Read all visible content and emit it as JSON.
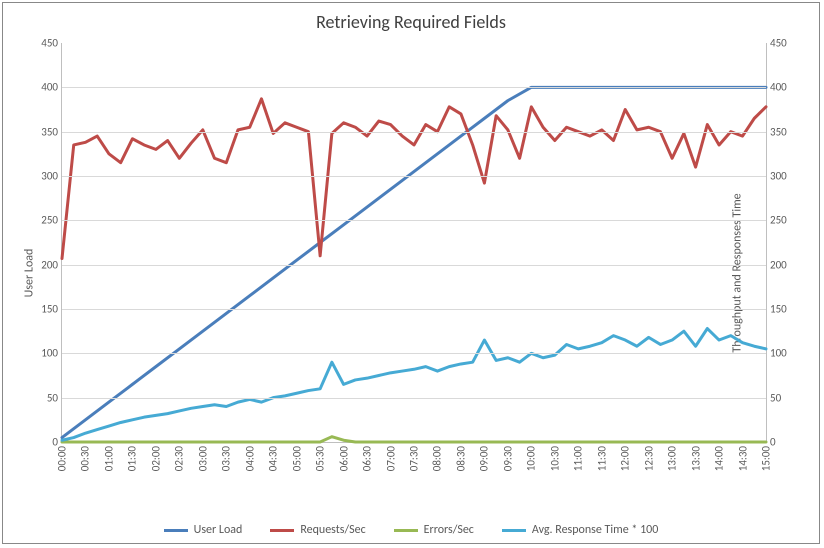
{
  "chart": {
    "title": "Retrieving Required Fields",
    "title_fontsize": 18,
    "font_family": "Calibri, Arial, sans-serif",
    "background_color": "#ffffff",
    "frame_border_color": "#888888",
    "grid_color": "#d9d9d9",
    "axis_color": "#bfbfbf",
    "tick_fontsize": 11,
    "label_fontsize": 12,
    "text_color": "#595959",
    "y_left": {
      "label": "User Load",
      "min": 0,
      "max": 450,
      "step": 50
    },
    "y_right": {
      "label": "Throughput and Responses Time",
      "min": 0,
      "max": 450,
      "step": 50
    },
    "x_labels": [
      "00:00",
      "00:30",
      "01:00",
      "01:30",
      "02:00",
      "02:30",
      "03:00",
      "03:30",
      "04:00",
      "04:30",
      "05:00",
      "05:30",
      "06:00",
      "06:30",
      "07:00",
      "07:30",
      "08:00",
      "08:30",
      "09:00",
      "09:30",
      "10:00",
      "10:30",
      "11:00",
      "11:30",
      "12:00",
      "12:30",
      "13:00",
      "13:30",
      "14:00",
      "14:30",
      "15:00"
    ],
    "series": [
      {
        "name": "User Load",
        "color": "#4a7ebb",
        "width": 3,
        "axis": "left",
        "data": [
          5,
          25,
          45,
          65,
          85,
          105,
          125,
          145,
          165,
          185,
          205,
          225,
          245,
          265,
          285,
          305,
          325,
          345,
          365,
          385,
          400,
          400,
          400,
          400,
          400,
          400,
          400,
          400,
          400,
          400,
          400
        ]
      },
      {
        "name": "Requests/Sec",
        "color": "#be4b48",
        "width": 3,
        "axis": "right",
        "data": [
          207,
          335,
          338,
          345,
          325,
          315,
          342,
          335,
          330,
          340,
          320,
          337,
          352,
          320,
          315,
          352,
          355,
          387,
          348,
          360,
          355,
          350,
          210,
          348,
          360,
          355,
          345,
          362,
          358,
          345,
          335,
          358,
          350,
          378,
          370,
          335,
          292,
          368,
          352,
          320,
          378,
          355,
          340,
          355,
          350,
          345,
          352,
          340,
          375,
          352,
          355,
          350,
          320,
          348,
          310,
          358,
          335,
          350,
          345,
          365,
          378
        ]
      },
      {
        "name": "Errors/Sec",
        "color": "#98b954",
        "width": 3,
        "axis": "right",
        "data": [
          0,
          0,
          0,
          0,
          0,
          0,
          0,
          0,
          0,
          0,
          0,
          0,
          0,
          0,
          0,
          0,
          0,
          0,
          0,
          0,
          0,
          0,
          0,
          6,
          2,
          0,
          0,
          0,
          0,
          0,
          0,
          0,
          0,
          0,
          0,
          0,
          0,
          0,
          0,
          0,
          0,
          0,
          0,
          0,
          0,
          0,
          0,
          0,
          0,
          0,
          0,
          0,
          0,
          0,
          0,
          0,
          0,
          0,
          0,
          0,
          0
        ]
      },
      {
        "name": "Avg. Response Time * 100",
        "color": "#46aad4",
        "width": 3,
        "axis": "right",
        "data": [
          2,
          5,
          10,
          14,
          18,
          22,
          25,
          28,
          30,
          32,
          35,
          38,
          40,
          42,
          40,
          45,
          48,
          45,
          50,
          52,
          55,
          58,
          60,
          90,
          65,
          70,
          72,
          75,
          78,
          80,
          82,
          85,
          80,
          85,
          88,
          90,
          115,
          92,
          95,
          90,
          100,
          95,
          98,
          110,
          105,
          108,
          112,
          120,
          115,
          108,
          118,
          110,
          115,
          125,
          108,
          128,
          115,
          120,
          112,
          108,
          105
        ]
      }
    ],
    "legend": [
      {
        "label": "User Load",
        "color": "#4a7ebb"
      },
      {
        "label": "Requests/Sec",
        "color": "#be4b48"
      },
      {
        "label": "Errors/Sec",
        "color": "#98b954"
      },
      {
        "label": "Avg. Response Time * 100",
        "color": "#46aad4"
      }
    ]
  }
}
